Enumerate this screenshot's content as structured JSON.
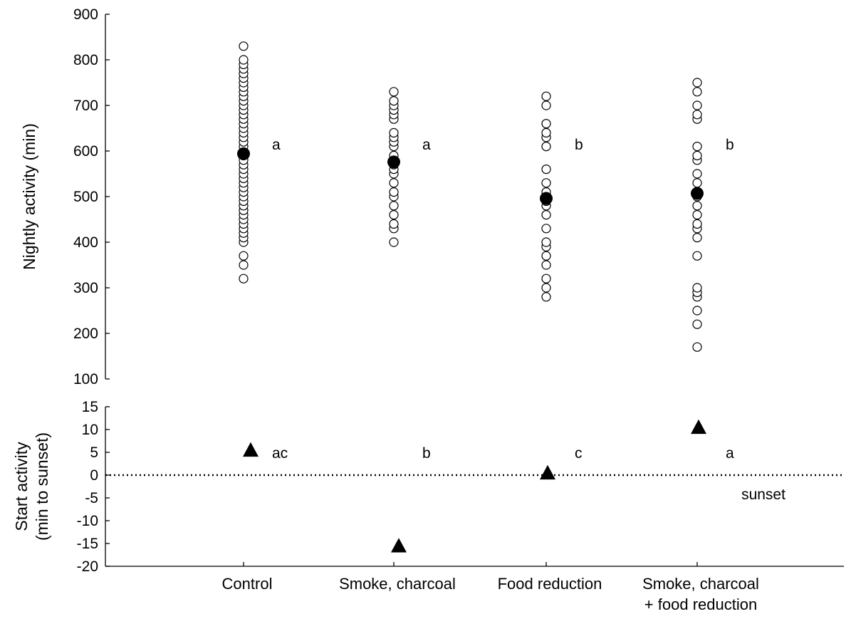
{
  "chart_data": [
    {
      "type": "scatter",
      "ylabel": "Nightly activity (min)",
      "ylim": [
        100,
        900
      ],
      "yticks": [
        100,
        200,
        300,
        400,
        500,
        600,
        700,
        800,
        900
      ],
      "categories": [
        "Control",
        "Smoke, charcoal",
        "Food reduction",
        "Smoke, charcoal\n+ food reduction"
      ],
      "series": [
        {
          "marker": "open-circle",
          "points": [
            [
              320,
              350,
              370,
              400,
              410,
              420,
              430,
              440,
              450,
              460,
              470,
              480,
              490,
              500,
              510,
              520,
              530,
              540,
              550,
              560,
              570,
              580,
              590,
              600,
              610,
              620,
              630,
              640,
              650,
              660,
              670,
              680,
              690,
              700,
              710,
              720,
              730,
              740,
              750,
              760,
              770,
              780,
              790,
              800,
              830
            ],
            [
              400,
              430,
              440,
              460,
              480,
              500,
              510,
              530,
              550,
              560,
              570,
              580,
              590,
              610,
              620,
              630,
              640,
              670,
              680,
              690,
              700,
              710,
              730
            ],
            [
              280,
              300,
              320,
              350,
              370,
              390,
              400,
              430,
              460,
              480,
              490,
              500,
              510,
              530,
              560,
              610,
              630,
              640,
              660,
              700,
              720
            ],
            [
              170,
              220,
              250,
              280,
              290,
              300,
              370,
              410,
              430,
              440,
              460,
              480,
              500,
              510,
              530,
              550,
              580,
              590,
              610,
              670,
              680,
              700,
              730,
              750
            ]
          ]
        },
        {
          "marker": "filled-circle",
          "means": [
            594,
            576,
            496,
            507
          ]
        }
      ],
      "letters": [
        "a",
        "a",
        "b",
        "b"
      ]
    },
    {
      "type": "scatter",
      "ylabel": "Start activity\n(min to sunset)",
      "ylim": [
        -20,
        15
      ],
      "yticks": [
        -20,
        -15,
        -10,
        -5,
        0,
        5,
        10,
        15
      ],
      "categories": [
        "Control",
        "Smoke, charcoal",
        "Food reduction",
        "Smoke, charcoal\n+ food reduction"
      ],
      "series": [
        {
          "marker": "filled-triangle",
          "values": [
            5.5,
            -15.5,
            0.5,
            10.5
          ]
        }
      ],
      "letters": [
        "ac",
        "b",
        "c",
        "a"
      ],
      "reference_line": {
        "y": 0,
        "style": "dotted",
        "label": "sunset"
      }
    }
  ]
}
